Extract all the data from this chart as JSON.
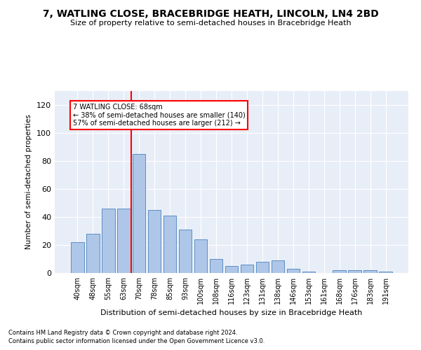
{
  "title": "7, WATLING CLOSE, BRACEBRIDGE HEATH, LINCOLN, LN4 2BD",
  "subtitle": "Size of property relative to semi-detached houses in Bracebridge Heath",
  "xlabel": "Distribution of semi-detached houses by size in Bracebridge Heath",
  "ylabel": "Number of semi-detached properties",
  "categories": [
    "40sqm",
    "48sqm",
    "55sqm",
    "63sqm",
    "70sqm",
    "78sqm",
    "85sqm",
    "93sqm",
    "100sqm",
    "108sqm",
    "116sqm",
    "123sqm",
    "131sqm",
    "138sqm",
    "146sqm",
    "153sqm",
    "161sqm",
    "168sqm",
    "176sqm",
    "183sqm",
    "191sqm"
  ],
  "values": [
    22,
    28,
    46,
    46,
    85,
    45,
    41,
    31,
    24,
    10,
    5,
    6,
    8,
    9,
    3,
    1,
    0,
    2,
    2,
    2,
    1
  ],
  "bar_color": "#aec6e8",
  "bar_edge_color": "#5b8ec4",
  "highlight_line_color": "red",
  "annotation_text": "7 WATLING CLOSE: 68sqm\n← 38% of semi-detached houses are smaller (140)\n57% of semi-detached houses are larger (212) →",
  "annotation_box_color": "white",
  "annotation_box_edge_color": "red",
  "ylim": [
    0,
    130
  ],
  "yticks": [
    0,
    20,
    40,
    60,
    80,
    100,
    120
  ],
  "background_color": "#e8eef7",
  "grid_color": "white",
  "footer_line1": "Contains HM Land Registry data © Crown copyright and database right 2024.",
  "footer_line2": "Contains public sector information licensed under the Open Government Licence v3.0."
}
